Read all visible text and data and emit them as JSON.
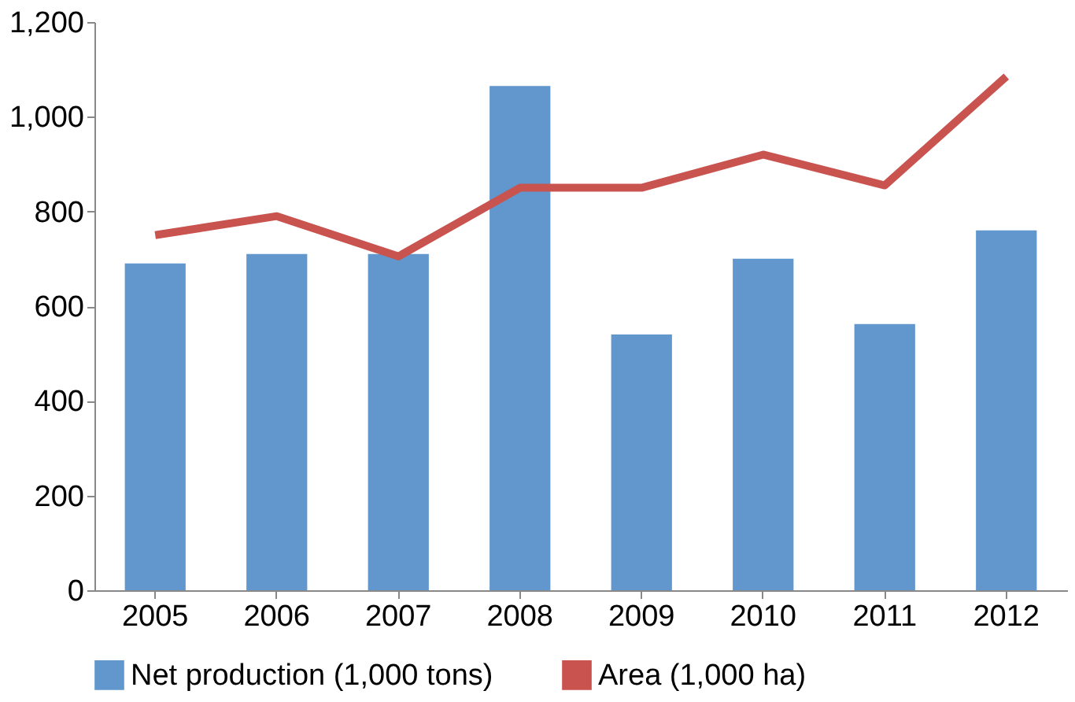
{
  "chart_data": {
    "type": "bar",
    "categories": [
      "2005",
      "2006",
      "2007",
      "2008",
      "2009",
      "2010",
      "2011",
      "2012"
    ],
    "series": [
      {
        "name": "Net production (1,000 tons)",
        "color": "#6197cd",
        "values": [
          690,
          710,
          710,
          1065,
          540,
          700,
          562,
          760
        ]
      },
      {
        "name": "Area (1,000 ha)",
        "color": "#c9534f",
        "type": "line",
        "values": [
          750,
          790,
          705,
          850,
          850,
          920,
          855,
          1085
        ]
      }
    ],
    "ylim": [
      0,
      1200
    ],
    "yticks": [
      0,
      200,
      400,
      600,
      800,
      {
        "value": 1000,
        "label": "1,000"
      },
      {
        "value": 1200,
        "label": "1,200"
      }
    ],
    "grid": false,
    "legend": "bottom",
    "marker": "none",
    "line_style": "solid"
  }
}
